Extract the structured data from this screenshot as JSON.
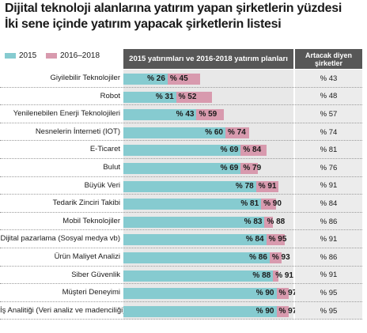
{
  "title_line1": "Dijital teknoloji alanlarına yatırım yapan şirketlerin yüzdesi",
  "title_line2": "İki sene içinde yatırım yapacak şirketlerin listesi",
  "column_headers": {
    "bars": "2015 yatırımları ve 2016-2018 yatırım planları",
    "right": "Artacak diyen şirketler"
  },
  "colors": {
    "s2015": "#86cbd0",
    "s2016": "#d89aae",
    "header": "#575757"
  },
  "chart_data": {
    "type": "bar",
    "orientation": "horizontal",
    "categories": [
      "Giyilebilir Teknolojiler",
      "Robot",
      "Yenilenebilen Enerji Teknolojileri",
      "Nesnelerin İnterneti (IOT)",
      "E-Ticaret",
      "Bulut",
      "Büyük Veri",
      "Tedarik Zinciri Takibi",
      "Mobil Teknolojiler",
      "Dijital pazarlama (Sosyal medya vb)",
      "Ürün Maliyet Analizi",
      "Siber Güvenlik",
      "Müşteri Deneyimi",
      "İş Analitiği (Veri analiz ve madenciliği)"
    ],
    "series": [
      {
        "name": "2015",
        "values": [
          26,
          31,
          43,
          60,
          69,
          69,
          78,
          81,
          83,
          84,
          86,
          88,
          90,
          90
        ],
        "labels": [
          "% 26",
          "% 31",
          "% 43",
          "% 60",
          "% 69",
          "% 69",
          "% 78",
          "% 81",
          "% 83",
          "% 84",
          "% 86",
          "% 88",
          "% 90",
          "% 90"
        ]
      },
      {
        "name": "2016–2018",
        "values": [
          45,
          52,
          59,
          74,
          84,
          79,
          91,
          90,
          88,
          95,
          93,
          91,
          97,
          97
        ],
        "labels": [
          "% 45",
          "% 52",
          "% 59",
          "% 74",
          "% 84",
          "% 79",
          "% 91",
          "% 90",
          "% 88",
          "% 95",
          "% 93",
          "% 91",
          "% 97",
          "% 97"
        ]
      }
    ],
    "right_column": [
      "% 43",
      "% 48",
      "% 57",
      "% 74",
      "% 81",
      "% 76",
      "% 91",
      "% 84",
      "% 86",
      "% 91",
      "% 86",
      "% 91",
      "% 95",
      "% 95"
    ],
    "xlim": [
      0,
      100
    ]
  }
}
